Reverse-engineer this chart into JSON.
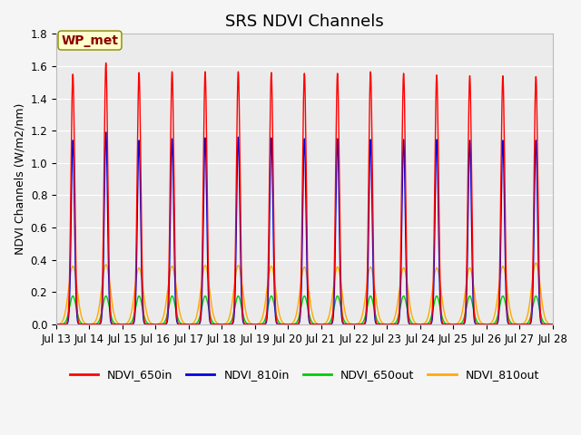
{
  "title": "SRS NDVI Channels",
  "ylabel": "NDVI Channels (W/m2/nm)",
  "xlabel": "",
  "ylim": [
    0.0,
    1.8
  ],
  "xtick_labels": [
    "Jul 13",
    "Jul 14",
    "Jul 15",
    "Jul 16",
    "Jul 17",
    "Jul 18",
    "Jul 19",
    "Jul 20",
    "Jul 21",
    "Jul 22",
    "Jul 23",
    "Jul 24",
    "Jul 25",
    "Jul 26",
    "Jul 27",
    "Jul 28"
  ],
  "series": {
    "NDVI_650in": {
      "color": "#ff0000"
    },
    "NDVI_810in": {
      "color": "#0000dd"
    },
    "NDVI_650out": {
      "color": "#00cc00"
    },
    "NDVI_810out": {
      "color": "#ffaa00"
    }
  },
  "annotation_text": "WP_met",
  "annotation_bg": "#ffffcc",
  "annotation_border": "#8B0000",
  "plot_bg": "#ebebeb",
  "fig_bg": "#f5f5f5",
  "grid_color": "#ffffff",
  "title_fontsize": 13,
  "label_fontsize": 9,
  "tick_fontsize": 8.5,
  "legend_fontsize": 9,
  "peaks_650in": [
    1.55,
    1.62,
    1.56,
    1.565,
    1.565,
    1.565,
    1.56,
    1.555,
    1.555,
    1.565,
    1.555,
    1.545,
    1.54,
    1.54,
    1.535
  ],
  "peaks_810in": [
    1.14,
    1.19,
    1.14,
    1.15,
    1.155,
    1.16,
    1.155,
    1.15,
    1.15,
    1.145,
    1.145,
    1.145,
    1.14,
    1.14,
    1.14
  ],
  "peaks_650out": [
    0.175,
    0.175,
    0.175,
    0.175,
    0.175,
    0.175,
    0.175,
    0.175,
    0.175,
    0.175,
    0.175,
    0.175,
    0.175,
    0.175,
    0.175
  ],
  "peaks_810out": [
    0.36,
    0.37,
    0.35,
    0.36,
    0.365,
    0.365,
    0.36,
    0.355,
    0.355,
    0.355,
    0.35,
    0.35,
    0.35,
    0.36,
    0.38
  ]
}
